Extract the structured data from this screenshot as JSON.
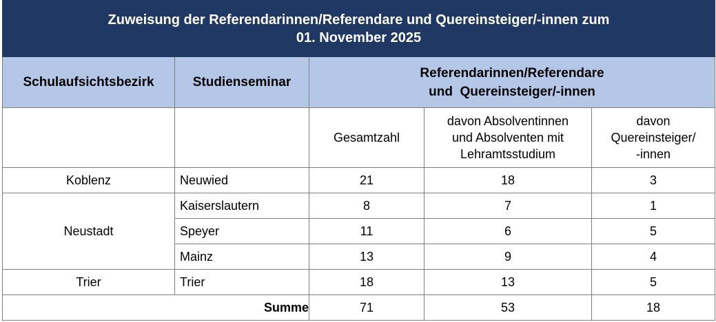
{
  "title": {
    "line1": "Zuweisung der Referendarinnen/Referendare und Quereinsteiger/-innen zum",
    "line2": "01. November 2025"
  },
  "header": {
    "col_bezirk": "Schulaufsichtsbezirk",
    "col_seminar": "Studienseminar",
    "group_line1": "Referendarinnen/Referendare",
    "group_line2": "und  Quereinsteiger/-innen",
    "sub_gesamt": "Gesamtzahl",
    "sub_absolventen_1": "davon Absolventinnen",
    "sub_absolventen_2": "und Absolventen mit",
    "sub_absolventen_3": "Lehramtsstudium",
    "sub_quer_1": "davon",
    "sub_quer_2": "Quereinsteiger/",
    "sub_quer_3": "-innen"
  },
  "rows": [
    {
      "bezirk": "Koblenz",
      "seminar": "Neuwied",
      "gesamt": "21",
      "absolventen": "18",
      "quer": "3"
    },
    {
      "bezirk": "Neustadt",
      "seminar": "Kaiserslautern",
      "gesamt": "8",
      "absolventen": "7",
      "quer": "1"
    },
    {
      "bezirk": "",
      "seminar": "Speyer",
      "gesamt": "11",
      "absolventen": "6",
      "quer": "5"
    },
    {
      "bezirk": "",
      "seminar": "Mainz",
      "gesamt": "13",
      "absolventen": "9",
      "quer": "4"
    },
    {
      "bezirk": "Trier",
      "seminar": "Trier",
      "gesamt": "18",
      "absolventen": "13",
      "quer": "5"
    }
  ],
  "total": {
    "label": "Summe",
    "gesamt": "71",
    "absolventen": "53",
    "quer": "18"
  }
}
